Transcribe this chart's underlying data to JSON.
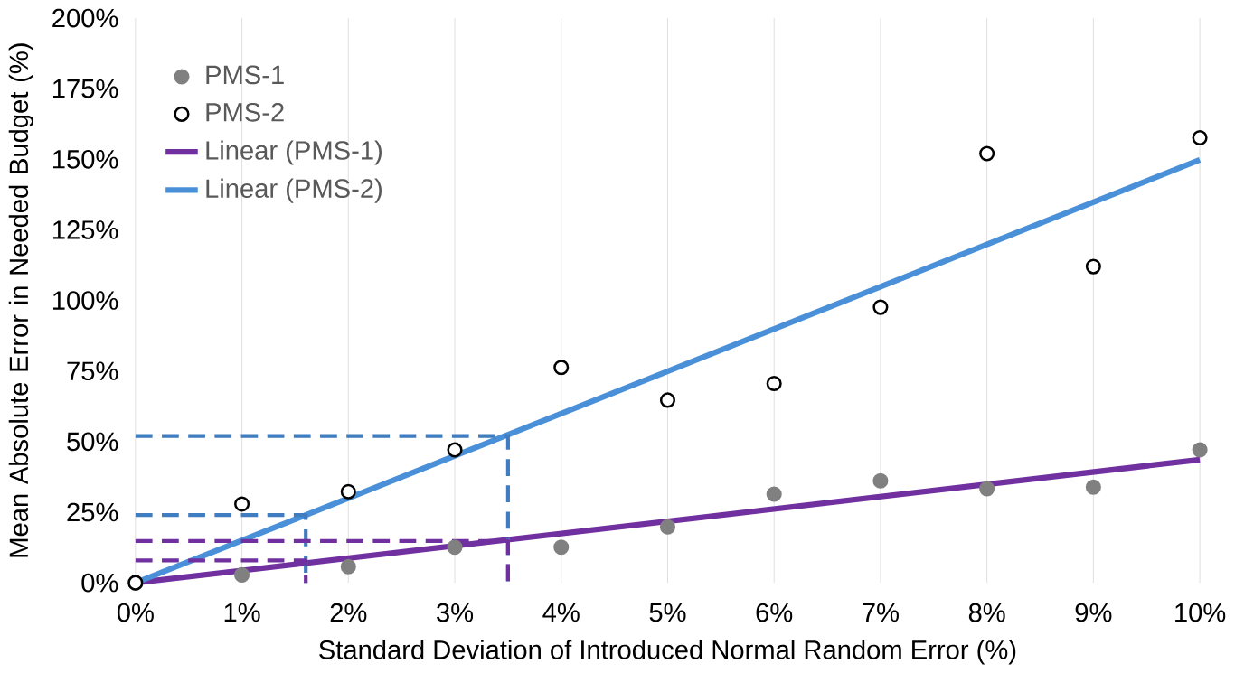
{
  "chart_data": {
    "type": "scatter",
    "xlabel": "Standard Deviation of Introduced Normal Random Error (%)",
    "ylabel": "Mean Absolute Error in Needed Budget (%)",
    "xlim": [
      0,
      10
    ],
    "ylim": [
      0,
      200
    ],
    "xticks": [
      {
        "value": 0,
        "label": "0%"
      },
      {
        "value": 1,
        "label": "1%"
      },
      {
        "value": 2,
        "label": "2%"
      },
      {
        "value": 3,
        "label": "3%"
      },
      {
        "value": 4,
        "label": "4%"
      },
      {
        "value": 5,
        "label": "5%"
      },
      {
        "value": 6,
        "label": "6%"
      },
      {
        "value": 7,
        "label": "7%"
      },
      {
        "value": 8,
        "label": "8%"
      },
      {
        "value": 9,
        "label": "9%"
      },
      {
        "value": 10,
        "label": "10%"
      }
    ],
    "yticks": [
      {
        "value": 0,
        "label": "0%"
      },
      {
        "value": 25,
        "label": "25%"
      },
      {
        "value": 50,
        "label": "50%"
      },
      {
        "value": 75,
        "label": "75%"
      },
      {
        "value": 100,
        "label": "100%"
      },
      {
        "value": 125,
        "label": "125%"
      },
      {
        "value": 150,
        "label": "150%"
      },
      {
        "value": 175,
        "label": "175%"
      },
      {
        "value": 200,
        "label": "200%"
      }
    ],
    "grid": "x",
    "legend": "top left",
    "series": [
      {
        "name": "PMS-1",
        "marker": "circle",
        "color": "#808080",
        "x": [
          0,
          1,
          2,
          3,
          4,
          5,
          6,
          7,
          8,
          9,
          10
        ],
        "values": [
          0,
          2.8,
          5.7,
          12.6,
          12.6,
          19.8,
          31.4,
          36.1,
          33.3,
          33.9,
          47.1
        ]
      },
      {
        "name": "PMS-2",
        "marker": "circle",
        "color": "#000000",
        "x": [
          0,
          1,
          2,
          3,
          4,
          5,
          6,
          7,
          8,
          9,
          10
        ],
        "values": [
          0,
          27.9,
          32.3,
          47.1,
          76.3,
          64.7,
          70.6,
          97.6,
          152,
          112,
          157.6
        ]
      },
      {
        "name": "Linear (PMS-1)",
        "type": "line",
        "line_style": "solid",
        "color": "#7030a0",
        "x": [
          0,
          10
        ],
        "values": [
          0,
          43.6
        ]
      },
      {
        "name": "Linear (PMS-2)",
        "type": "line",
        "line_style": "solid",
        "color": "#4a90d9",
        "x": [
          0,
          10
        ],
        "values": [
          0,
          149.8
        ]
      },
      {
        "type": "line",
        "line_style": "dashed",
        "color": "#3f7cc0",
        "x": [
          0,
          3.5,
          3.5
        ],
        "values": [
          52,
          52,
          0
        ]
      },
      {
        "type": "line",
        "line_style": "dashed",
        "color": "#3f7cc0",
        "x": [
          0,
          1.6,
          1.6
        ],
        "values": [
          24,
          24,
          0
        ]
      },
      {
        "type": "line",
        "line_style": "dashed",
        "color": "#7030a0",
        "x": [
          0,
          3.5,
          3.5
        ],
        "values": [
          14.8,
          14.8,
          0
        ]
      },
      {
        "type": "line",
        "line_style": "dashed",
        "color": "#7030a0",
        "x": [
          0,
          1.6,
          1.6
        ],
        "values": [
          7.9,
          7.9,
          0
        ]
      }
    ]
  }
}
